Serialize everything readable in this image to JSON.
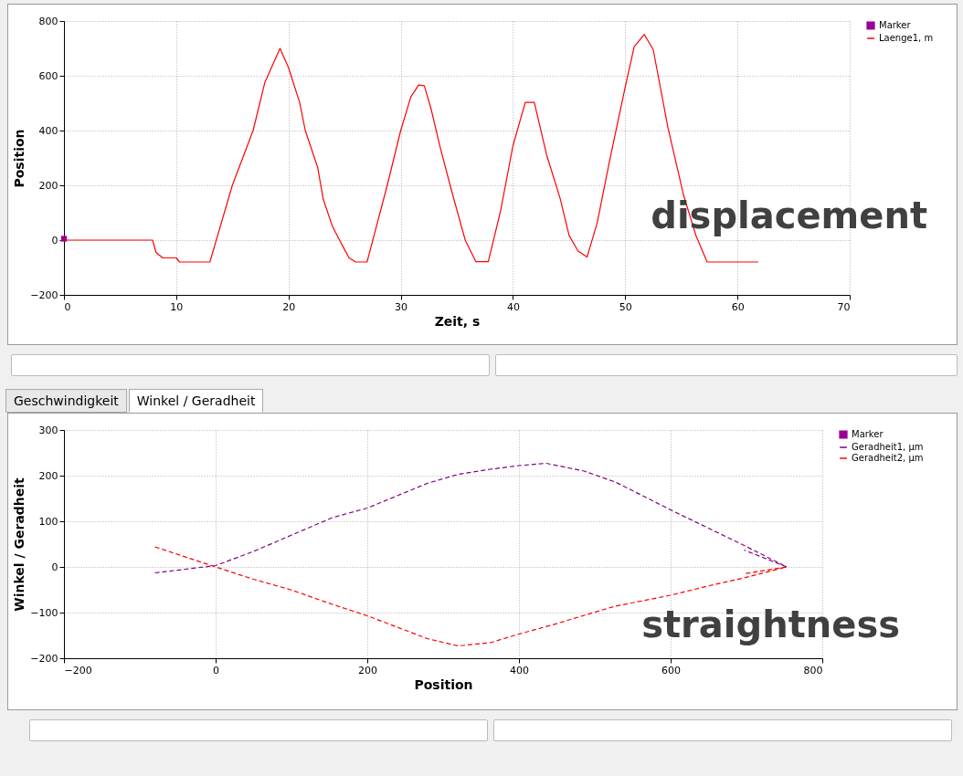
{
  "chart_data": [
    {
      "type": "line",
      "xlabel": "Zeit, s",
      "ylabel": "Position",
      "xlim": [
        0,
        70
      ],
      "xticks": [
        0,
        10,
        20,
        30,
        40,
        50,
        60,
        70
      ],
      "ylim": [
        -200,
        800
      ],
      "yticks": [
        -200,
        0,
        200,
        400,
        600,
        800
      ],
      "grid": true,
      "legend": "top right",
      "annotations": [
        "displacement"
      ],
      "series": [
        {
          "name": "Marker",
          "type": "scatter",
          "marker": "square",
          "color": "#990099",
          "x": [
            0
          ],
          "values": [
            5
          ]
        },
        {
          "name": "Laenge1, m",
          "type": "line",
          "color": "#ff0000",
          "x": [
            0,
            7.9,
            8.2,
            8.5,
            8.8,
            10,
            10.3,
            13,
            15,
            16.85,
            17.9,
            19.25,
            20,
            21,
            21.5,
            22.6,
            23.1,
            23.9,
            24.7,
            25.4,
            26,
            27,
            28.8,
            30,
            30.9,
            31.6,
            32.1,
            32.7,
            33.5,
            34.6,
            35.75,
            36.7,
            37.8,
            38.9,
            40,
            41.1,
            41.9,
            43,
            44.2,
            45,
            45.8,
            46.6,
            47.5,
            48.6,
            50,
            50.8,
            51.7,
            52.5,
            53.8,
            55.2,
            56.3,
            57.3,
            61.85
          ],
          "values": [
            0,
            0,
            -45,
            -55,
            -65,
            -65,
            -80,
            -80,
            200,
            400,
            576,
            700,
            630,
            502,
            400,
            266,
            149,
            52,
            -12,
            -65,
            -80,
            -80,
            200,
            400,
            523,
            566,
            564,
            480,
            341,
            170,
            0,
            -79,
            -79,
            107,
            345,
            503,
            503,
            311,
            153,
            17,
            -40,
            -62,
            62,
            288,
            559,
            706,
            751,
            695,
            412,
            164,
            17,
            -80,
            -80
          ]
        }
      ]
    },
    {
      "type": "line",
      "xlabel": "Position",
      "ylabel": "Winkel / Geradheit",
      "xlim": [
        -200,
        800
      ],
      "xticks": [
        -200,
        0,
        200,
        400,
        600,
        800
      ],
      "ylim": [
        -200,
        300
      ],
      "yticks": [
        -200,
        -100,
        0,
        100,
        200,
        300
      ],
      "grid": true,
      "legend": "top right",
      "annotations": [
        "Geschwindigkeit",
        "Winkel / Geradheit",
        "straightness"
      ],
      "series": [
        {
          "name": "Marker",
          "type": "scatter",
          "marker": "square",
          "color": "#990099"
        },
        {
          "name": "Geradheit1, µm",
          "type": "line",
          "line_style": "dashed",
          "color": "#800080",
          "x": [
            -80,
            -40,
            0,
            50,
            99,
            154,
            200,
            279,
            320,
            362,
            400,
            436,
            486,
            527,
            568,
            600,
            651,
            697,
            753,
            697
          ],
          "values": [
            -13,
            -5,
            3,
            34,
            69,
            108,
            129,
            183,
            203,
            214,
            222,
            227,
            210,
            186,
            152,
            125,
            84,
            47,
            0,
            37
          ]
        },
        {
          "name": "Geradheit2, µm",
          "type": "line",
          "line_style": "dashed",
          "color": "#ff0000",
          "x": [
            -80,
            0,
            50,
            99,
            154,
            200,
            279,
            320,
            362,
            400,
            444,
            486,
            527,
            600,
            651,
            697,
            753,
            697
          ],
          "values": [
            44,
            0,
            -27,
            -50,
            -82,
            -107,
            -157,
            -173,
            -166,
            -147,
            -127,
            -106,
            -86,
            -62,
            -41,
            -24,
            0,
            -15
          ]
        }
      ]
    }
  ]
}
